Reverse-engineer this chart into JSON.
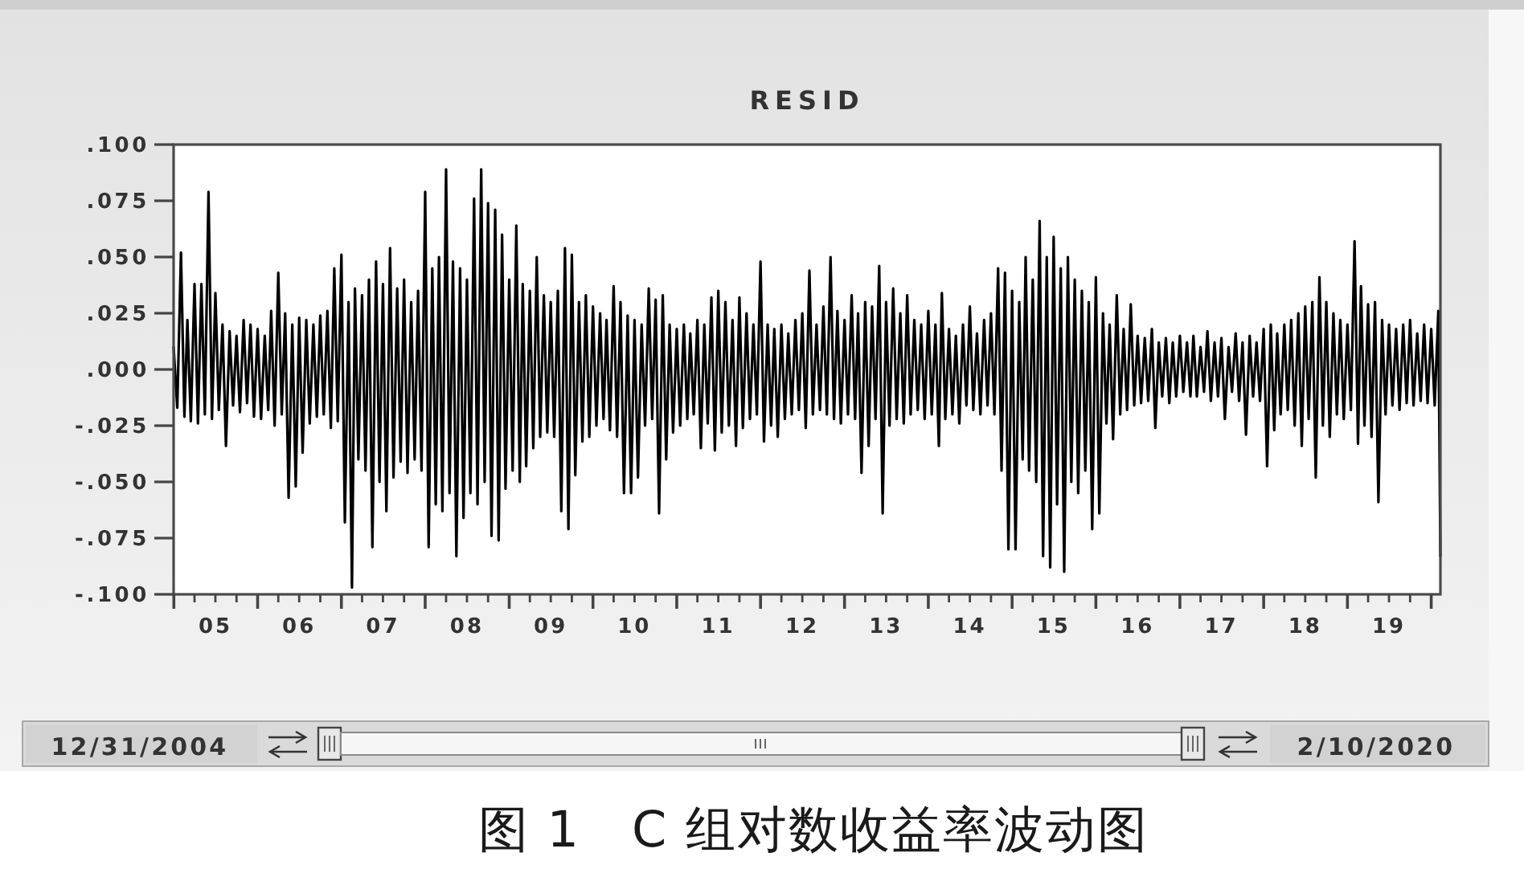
{
  "chart_data": {
    "type": "line",
    "title": "RESID",
    "color": "#000000",
    "line_style": "solid",
    "xlim": [
      "2004-12-31",
      "2020-02-10"
    ],
    "xticks": [
      {
        "value": "2005-01-01",
        "label": null
      },
      {
        "value": "2005-04-01",
        "label": null
      },
      {
        "value": "2005-07-01",
        "label": "05"
      },
      {
        "value": "2005-10-01",
        "label": null
      },
      {
        "value": "2006-01-01",
        "label": null
      },
      {
        "value": "2006-04-01",
        "label": null
      },
      {
        "value": "2006-07-01",
        "label": "06"
      },
      {
        "value": "2006-10-01",
        "label": null
      },
      {
        "value": "2007-01-01",
        "label": null
      },
      {
        "value": "2007-04-01",
        "label": null
      },
      {
        "value": "2007-07-01",
        "label": "07"
      },
      {
        "value": "2007-10-01",
        "label": null
      },
      {
        "value": "2008-01-01",
        "label": null
      },
      {
        "value": "2008-04-01",
        "label": null
      },
      {
        "value": "2008-07-01",
        "label": "08"
      },
      {
        "value": "2008-10-01",
        "label": null
      },
      {
        "value": "2009-01-01",
        "label": null
      },
      {
        "value": "2009-04-01",
        "label": null
      },
      {
        "value": "2009-07-01",
        "label": "09"
      },
      {
        "value": "2009-10-01",
        "label": null
      },
      {
        "value": "2010-01-01",
        "label": null
      },
      {
        "value": "2010-04-01",
        "label": null
      },
      {
        "value": "2010-07-01",
        "label": "10"
      },
      {
        "value": "2010-10-01",
        "label": null
      },
      {
        "value": "2011-01-01",
        "label": null
      },
      {
        "value": "2011-04-01",
        "label": null
      },
      {
        "value": "2011-07-01",
        "label": "11"
      },
      {
        "value": "2011-10-01",
        "label": null
      },
      {
        "value": "2012-01-01",
        "label": null
      },
      {
        "value": "2012-04-01",
        "label": null
      },
      {
        "value": "2012-07-01",
        "label": "12"
      },
      {
        "value": "2012-10-01",
        "label": null
      },
      {
        "value": "2013-01-01",
        "label": null
      },
      {
        "value": "2013-04-01",
        "label": null
      },
      {
        "value": "2013-07-01",
        "label": "13"
      },
      {
        "value": "2013-10-01",
        "label": null
      },
      {
        "value": "2014-01-01",
        "label": null
      },
      {
        "value": "2014-04-01",
        "label": null
      },
      {
        "value": "2014-07-01",
        "label": "14"
      },
      {
        "value": "2014-10-01",
        "label": null
      },
      {
        "value": "2015-01-01",
        "label": null
      },
      {
        "value": "2015-04-01",
        "label": null
      },
      {
        "value": "2015-07-01",
        "label": "15"
      },
      {
        "value": "2015-10-01",
        "label": null
      },
      {
        "value": "2016-01-01",
        "label": null
      },
      {
        "value": "2016-04-01",
        "label": null
      },
      {
        "value": "2016-07-01",
        "label": "16"
      },
      {
        "value": "2016-10-01",
        "label": null
      },
      {
        "value": "2017-01-01",
        "label": null
      },
      {
        "value": "2017-04-01",
        "label": null
      },
      {
        "value": "2017-07-01",
        "label": "17"
      },
      {
        "value": "2017-10-01",
        "label": null
      },
      {
        "value": "2018-01-01",
        "label": null
      },
      {
        "value": "2018-04-01",
        "label": null
      },
      {
        "value": "2018-07-01",
        "label": "18"
      },
      {
        "value": "2018-10-01",
        "label": null
      },
      {
        "value": "2019-01-01",
        "label": null
      },
      {
        "value": "2019-04-01",
        "label": null
      },
      {
        "value": "2019-07-01",
        "label": "19"
      },
      {
        "value": "2019-10-01",
        "label": null
      },
      {
        "value": "2020-01-01",
        "label": null
      }
    ],
    "ylim": [
      -0.1,
      0.1
    ],
    "yticks": [
      {
        "value": 0.1,
        "label": ".100"
      },
      {
        "value": 0.075,
        "label": ".075"
      },
      {
        "value": 0.05,
        "label": ".050"
      },
      {
        "value": 0.025,
        "label": ".025"
      },
      {
        "value": 0,
        "label": ".000"
      },
      {
        "value": -0.025,
        "label": "-.025"
      },
      {
        "value": -0.05,
        "label": "-.050"
      },
      {
        "value": -0.075,
        "label": "-.075"
      },
      {
        "value": -0.1,
        "label": "-.100"
      }
    ],
    "annotations": [
      "12/31/2004",
      "2/10/2020",
      "图 1　C 组对数收益率波动图"
    ],
    "x": [
      "2004-12-31",
      "2005-01-16",
      "2005-02-01",
      "2005-02-16",
      "2005-03-01",
      "2005-03-16",
      "2005-04-01",
      "2005-04-16",
      "2005-05-01",
      "2005-05-16",
      "2005-06-01",
      "2005-06-16",
      "2005-07-01",
      "2005-07-16",
      "2005-08-01",
      "2005-08-16",
      "2005-09-01",
      "2005-09-16",
      "2005-10-01",
      "2005-10-16",
      "2005-11-01",
      "2005-11-16",
      "2005-12-01",
      "2005-12-16",
      "2006-01-01",
      "2006-01-16",
      "2006-02-01",
      "2006-02-16",
      "2006-03-01",
      "2006-03-16",
      "2006-04-01",
      "2006-04-16",
      "2006-05-01",
      "2006-05-16",
      "2006-06-01",
      "2006-06-16",
      "2006-07-01",
      "2006-07-16",
      "2006-08-01",
      "2006-08-16",
      "2006-09-01",
      "2006-09-16",
      "2006-10-01",
      "2006-10-16",
      "2006-11-01",
      "2006-11-16",
      "2006-12-01",
      "2006-12-16",
      "2007-01-01",
      "2007-01-16",
      "2007-02-01",
      "2007-02-16",
      "2007-03-01",
      "2007-03-16",
      "2007-04-01",
      "2007-04-16",
      "2007-05-01",
      "2007-05-16",
      "2007-06-01",
      "2007-06-16",
      "2007-07-01",
      "2007-07-16",
      "2007-08-01",
      "2007-08-16",
      "2007-09-01",
      "2007-09-16",
      "2007-10-01",
      "2007-10-16",
      "2007-11-01",
      "2007-11-16",
      "2007-12-01",
      "2007-12-16",
      "2008-01-01",
      "2008-01-16",
      "2008-02-01",
      "2008-02-16",
      "2008-03-01",
      "2008-03-16",
      "2008-04-01",
      "2008-04-16",
      "2008-05-01",
      "2008-05-16",
      "2008-06-01",
      "2008-06-16",
      "2008-07-01",
      "2008-07-16",
      "2008-08-01",
      "2008-08-16",
      "2008-09-01",
      "2008-09-16",
      "2008-10-01",
      "2008-10-16",
      "2008-11-01",
      "2008-11-16",
      "2008-12-01",
      "2008-12-16",
      "2009-01-01",
      "2009-01-16",
      "2009-02-01",
      "2009-02-16",
      "2009-03-01",
      "2009-03-16",
      "2009-04-01",
      "2009-04-16",
      "2009-05-01",
      "2009-05-16",
      "2009-06-01",
      "2009-06-16",
      "2009-07-01",
      "2009-07-16",
      "2009-08-01",
      "2009-08-16",
      "2009-09-01",
      "2009-09-16",
      "2009-10-01",
      "2009-10-16",
      "2009-11-01",
      "2009-11-16",
      "2009-12-01",
      "2009-12-16",
      "2010-01-01",
      "2010-01-16",
      "2010-02-01",
      "2010-02-16",
      "2010-03-01",
      "2010-03-16",
      "2010-04-01",
      "2010-04-16",
      "2010-05-01",
      "2010-05-16",
      "2010-06-01",
      "2010-06-16",
      "2010-07-01",
      "2010-07-16",
      "2010-08-01",
      "2010-08-16",
      "2010-09-01",
      "2010-09-16",
      "2010-10-01",
      "2010-10-16",
      "2010-11-01",
      "2010-11-16",
      "2010-12-01",
      "2010-12-16",
      "2011-01-01",
      "2011-01-16",
      "2011-02-01",
      "2011-02-16",
      "2011-03-01",
      "2011-03-16",
      "2011-04-01",
      "2011-04-16",
      "2011-05-01",
      "2011-05-16",
      "2011-06-01",
      "2011-06-16",
      "2011-07-01",
      "2011-07-16",
      "2011-08-01",
      "2011-08-16",
      "2011-09-01",
      "2011-09-16",
      "2011-10-01",
      "2011-10-16",
      "2011-11-01",
      "2011-11-16",
      "2011-12-01",
      "2011-12-16",
      "2012-01-01",
      "2012-01-16",
      "2012-02-01",
      "2012-02-16",
      "2012-03-01",
      "2012-03-16",
      "2012-04-01",
      "2012-04-16",
      "2012-05-01",
      "2012-05-16",
      "2012-06-01",
      "2012-06-16",
      "2012-07-01",
      "2012-07-16",
      "2012-08-01",
      "2012-08-16",
      "2012-09-01",
      "2012-09-16",
      "2012-10-01",
      "2012-10-16",
      "2012-11-01",
      "2012-11-16",
      "2012-12-01",
      "2012-12-16",
      "2013-01-01",
      "2013-01-16",
      "2013-02-01",
      "2013-02-16",
      "2013-03-01",
      "2013-03-16",
      "2013-04-01",
      "2013-04-16",
      "2013-05-01",
      "2013-05-16",
      "2013-06-01",
      "2013-06-16",
      "2013-07-01",
      "2013-07-16",
      "2013-08-01",
      "2013-08-16",
      "2013-09-01",
      "2013-09-16",
      "2013-10-01",
      "2013-10-16",
      "2013-11-01",
      "2013-11-16",
      "2013-12-01",
      "2013-12-16",
      "2014-01-01",
      "2014-01-16",
      "2014-02-01",
      "2014-02-16",
      "2014-03-01",
      "2014-03-16",
      "2014-04-01",
      "2014-04-16",
      "2014-05-01",
      "2014-05-16",
      "2014-06-01",
      "2014-06-16",
      "2014-07-01",
      "2014-07-16",
      "2014-08-01",
      "2014-08-16",
      "2014-09-01",
      "2014-09-16",
      "2014-10-01",
      "2014-10-16",
      "2014-11-01",
      "2014-11-16",
      "2014-12-01",
      "2014-12-16",
      "2015-01-01",
      "2015-01-16",
      "2015-02-01",
      "2015-02-16",
      "2015-03-01",
      "2015-03-16",
      "2015-04-01",
      "2015-04-16",
      "2015-05-01",
      "2015-05-16",
      "2015-06-01",
      "2015-06-16",
      "2015-07-01",
      "2015-07-16",
      "2015-08-01",
      "2015-08-16",
      "2015-09-01",
      "2015-09-16",
      "2015-10-01",
      "2015-10-16",
      "2015-11-01",
      "2015-11-16",
      "2015-12-01",
      "2015-12-16",
      "2016-01-01",
      "2016-01-16",
      "2016-02-01",
      "2016-02-16",
      "2016-03-01",
      "2016-03-16",
      "2016-04-01",
      "2016-04-16",
      "2016-05-01",
      "2016-05-16",
      "2016-06-01",
      "2016-06-16",
      "2016-07-01",
      "2016-07-16",
      "2016-08-01",
      "2016-08-16",
      "2016-09-01",
      "2016-09-16",
      "2016-10-01",
      "2016-10-16",
      "2016-11-01",
      "2016-11-16",
      "2016-12-01",
      "2016-12-16",
      "2017-01-01",
      "2017-01-16",
      "2017-02-01",
      "2017-02-16",
      "2017-03-01",
      "2017-03-16",
      "2017-04-01",
      "2017-04-16",
      "2017-05-01",
      "2017-05-16",
      "2017-06-01",
      "2017-06-16",
      "2017-07-01",
      "2017-07-16",
      "2017-08-01",
      "2017-08-16",
      "2017-09-01",
      "2017-09-16",
      "2017-10-01",
      "2017-10-16",
      "2017-11-01",
      "2017-11-16",
      "2017-12-01",
      "2017-12-16",
      "2018-01-01",
      "2018-01-16",
      "2018-02-01",
      "2018-02-16",
      "2018-03-01",
      "2018-03-16",
      "2018-04-01",
      "2018-04-16",
      "2018-05-01",
      "2018-05-16",
      "2018-06-01",
      "2018-06-16",
      "2018-07-01",
      "2018-07-16",
      "2018-08-01",
      "2018-08-16",
      "2018-09-01",
      "2018-09-16",
      "2018-10-01",
      "2018-10-16",
      "2018-11-01",
      "2018-11-16",
      "2018-12-01",
      "2018-12-16",
      "2019-01-01",
      "2019-01-16",
      "2019-02-01",
      "2019-02-16",
      "2019-03-01",
      "2019-03-16",
      "2019-04-01",
      "2019-04-16",
      "2019-05-01",
      "2019-05-16",
      "2019-06-01",
      "2019-06-16",
      "2019-07-01",
      "2019-07-16",
      "2019-08-01",
      "2019-08-16",
      "2019-09-01",
      "2019-09-16",
      "2019-10-01",
      "2019-10-16",
      "2019-11-01",
      "2019-11-16",
      "2019-12-01",
      "2019-12-16",
      "2020-01-01",
      "2020-01-16",
      "2020-02-01",
      "2020-02-10"
    ],
    "values": [
      0.01,
      -0.017,
      0.052,
      -0.021,
      0.022,
      -0.023,
      0.038,
      -0.024,
      0.038,
      -0.02,
      0.079,
      -0.022,
      0.034,
      -0.018,
      0.02,
      -0.034,
      0.017,
      -0.016,
      0.015,
      -0.019,
      0.022,
      -0.015,
      0.02,
      -0.021,
      0.018,
      -0.022,
      0.015,
      -0.018,
      0.026,
      -0.025,
      0.043,
      -0.02,
      0.025,
      -0.057,
      0.02,
      -0.052,
      0.023,
      -0.037,
      0.022,
      -0.024,
      0.02,
      -0.021,
      0.024,
      -0.02,
      0.026,
      -0.026,
      0.045,
      -0.023,
      0.051,
      -0.068,
      0.03,
      -0.097,
      0.036,
      -0.04,
      0.033,
      -0.045,
      0.04,
      -0.079,
      0.048,
      -0.05,
      0.038,
      -0.063,
      0.054,
      -0.048,
      0.036,
      -0.041,
      0.04,
      -0.046,
      0.03,
      -0.04,
      0.035,
      -0.045,
      0.079,
      -0.079,
      0.045,
      -0.06,
      0.05,
      -0.063,
      0.089,
      -0.055,
      0.048,
      -0.083,
      0.045,
      -0.066,
      0.04,
      -0.055,
      0.076,
      -0.06,
      0.089,
      -0.05,
      0.074,
      -0.074,
      0.071,
      -0.076,
      0.06,
      -0.053,
      0.04,
      -0.045,
      0.064,
      -0.05,
      0.038,
      -0.043,
      0.035,
      -0.035,
      0.05,
      -0.03,
      0.033,
      -0.028,
      0.03,
      -0.03,
      0.035,
      -0.063,
      0.054,
      -0.071,
      0.051,
      -0.047,
      0.03,
      -0.032,
      0.033,
      -0.03,
      0.028,
      -0.025,
      0.025,
      -0.022,
      0.022,
      -0.027,
      0.037,
      -0.03,
      0.03,
      -0.055,
      0.024,
      -0.055,
      0.022,
      -0.048,
      0.02,
      -0.025,
      0.036,
      -0.022,
      0.031,
      -0.064,
      0.033,
      -0.04,
      0.02,
      -0.028,
      0.018,
      -0.025,
      0.02,
      -0.022,
      0.016,
      -0.02,
      0.022,
      -0.035,
      0.02,
      -0.024,
      0.032,
      -0.036,
      0.035,
      -0.028,
      0.03,
      -0.025,
      0.022,
      -0.034,
      0.032,
      -0.026,
      0.025,
      -0.022,
      0.02,
      -0.02,
      0.048,
      -0.032,
      0.02,
      -0.025,
      0.018,
      -0.03,
      0.02,
      -0.022,
      0.016,
      -0.02,
      0.022,
      -0.018,
      0.025,
      -0.026,
      0.044,
      -0.02,
      0.02,
      -0.018,
      0.028,
      -0.02,
      0.05,
      -0.022,
      0.026,
      -0.024,
      0.022,
      -0.02,
      0.033,
      -0.022,
      0.025,
      -0.046,
      0.03,
      -0.034,
      0.028,
      -0.022,
      0.046,
      -0.064,
      0.03,
      -0.025,
      0.036,
      -0.022,
      0.025,
      -0.024,
      0.033,
      -0.02,
      0.022,
      -0.018,
      0.02,
      -0.022,
      0.026,
      -0.02,
      0.02,
      -0.034,
      0.034,
      -0.022,
      0.018,
      -0.02,
      0.015,
      -0.024,
      0.02,
      -0.016,
      0.028,
      -0.018,
      0.016,
      -0.02,
      0.022,
      -0.016,
      0.025,
      -0.02,
      0.045,
      -0.045,
      0.043,
      -0.08,
      0.035,
      -0.08,
      0.03,
      -0.04,
      0.05,
      -0.045,
      0.04,
      -0.05,
      0.066,
      -0.083,
      0.05,
      -0.088,
      0.059,
      -0.06,
      0.045,
      -0.09,
      0.05,
      -0.05,
      0.04,
      -0.055,
      0.035,
      -0.045,
      0.03,
      -0.071,
      0.041,
      -0.064,
      0.025,
      -0.024,
      0.02,
      -0.031,
      0.033,
      -0.02,
      0.018,
      -0.018,
      0.029,
      -0.016,
      0.015,
      -0.015,
      0.014,
      -0.014,
      0.018,
      -0.026,
      0.012,
      -0.012,
      0.014,
      -0.015,
      0.012,
      -0.012,
      0.015,
      -0.01,
      0.012,
      -0.012,
      0.015,
      -0.012,
      0.01,
      -0.01,
      0.017,
      -0.014,
      0.012,
      -0.012,
      0.014,
      -0.022,
      0.01,
      -0.01,
      0.016,
      -0.014,
      0.012,
      -0.029,
      0.015,
      -0.012,
      0.012,
      -0.014,
      0.018,
      -0.043,
      0.02,
      -0.027,
      0.016,
      -0.02,
      0.02,
      -0.018,
      0.022,
      -0.025,
      0.025,
      -0.034,
      0.028,
      -0.022,
      0.03,
      -0.048,
      0.041,
      -0.025,
      0.03,
      -0.03,
      0.025,
      -0.02,
      0.022,
      -0.022,
      0.02,
      -0.018,
      0.057,
      -0.033,
      0.037,
      -0.025,
      0.029,
      -0.03,
      0.03,
      -0.059,
      0.022,
      -0.02,
      0.02,
      -0.016,
      0.018,
      -0.018,
      0.02,
      -0.015,
      0.022,
      -0.016,
      0.016,
      -0.014,
      0.02,
      -0.015,
      0.018,
      -0.016,
      0.026,
      -0.083
    ]
  }
}
